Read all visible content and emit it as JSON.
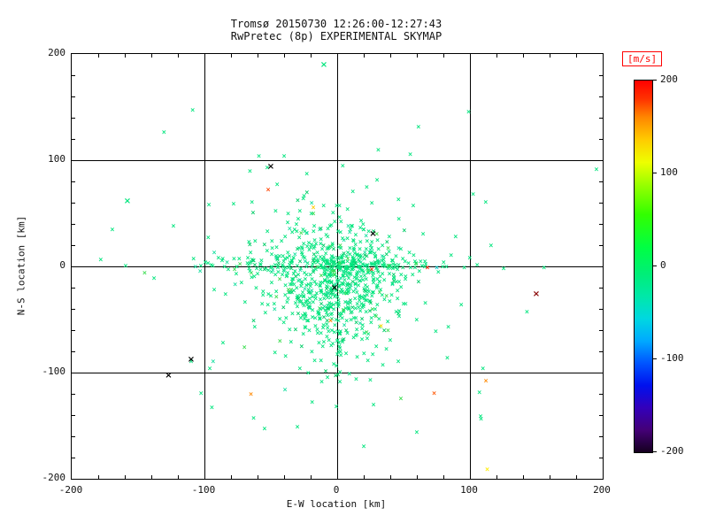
{
  "figure": {
    "title_line1": "Tromsø 20150730 12:26:00-12:27:43",
    "title_line2": "RwPretec (8p) EXPERIMENTAL SKYMAP",
    "text_color": "#111111",
    "background": "#ffffff"
  },
  "axes": {
    "xlabel": "E-W location [km]",
    "ylabel": "N-S location [km]",
    "xlim": [
      -200,
      200
    ],
    "ylim": [
      -200,
      200
    ],
    "xticks": [
      -200,
      -100,
      0,
      100,
      200
    ],
    "yticks": [
      -200,
      -100,
      0,
      100,
      200
    ],
    "minor_step": 20,
    "grid_color": "#000000"
  },
  "colorbar": {
    "label": "[m/s]",
    "label_color": "#ff0000",
    "min": -200,
    "max": 200,
    "ticks": [
      200,
      100,
      0,
      -100,
      -200
    ],
    "gradient": [
      [
        0.0,
        "#ff0000"
      ],
      [
        0.05,
        "#ff3300"
      ],
      [
        0.1,
        "#ff8800"
      ],
      [
        0.16,
        "#ffcc00"
      ],
      [
        0.22,
        "#eeff00"
      ],
      [
        0.28,
        "#99ff00"
      ],
      [
        0.36,
        "#33ff00"
      ],
      [
        0.45,
        "#00ff44"
      ],
      [
        0.52,
        "#00ee77"
      ],
      [
        0.58,
        "#00e8a8"
      ],
      [
        0.64,
        "#00d8e0"
      ],
      [
        0.7,
        "#00aaff"
      ],
      [
        0.76,
        "#0055ff"
      ],
      [
        0.82,
        "#0011ee"
      ],
      [
        0.88,
        "#3300bb"
      ],
      [
        0.94,
        "#440077"
      ],
      [
        1.0,
        "#15001f"
      ]
    ]
  },
  "chart_data": {
    "type": "scatter",
    "title": "Tromsø 20150730 12:26:00-12:27:43 — RwPretec (8p) EXPERIMENTAL SKYMAP",
    "xlabel": "E-W location [km]",
    "ylabel": "N-S location [km]",
    "xlim": [
      -200,
      200
    ],
    "ylim": [
      -200,
      200
    ],
    "value_unit": "m/s",
    "value_range": [
      -200,
      200
    ],
    "marker": "×",
    "seed": 20150730,
    "palette": [
      [
        "#00E57D",
        84
      ],
      [
        "#00CC66",
        8
      ],
      [
        "#17DFA0",
        4
      ],
      [
        "#3ADD4F",
        4
      ]
    ],
    "clusters": [
      {
        "count": 520,
        "cx": -5,
        "cy": -8,
        "sx": 26,
        "sy": 28
      },
      {
        "count": 150,
        "cx": -15,
        "cy": 0,
        "sx": 55,
        "sy": 5
      },
      {
        "count": 150,
        "cx": 2,
        "cy": -48,
        "sx": 15,
        "sy": 28
      },
      {
        "count": 100,
        "cx": 0,
        "cy": -10,
        "sx": 75,
        "sy": 65
      },
      {
        "count": 60,
        "cx": 22,
        "cy": 2,
        "sx": 12,
        "sy": 10
      }
    ],
    "outliers": [
      {
        "x": -50,
        "y": 93,
        "c": "#000000",
        "big": true
      },
      {
        "x": 27,
        "y": 30,
        "c": "#000000",
        "big": true
      },
      {
        "x": -2,
        "y": -21,
        "c": "#000000",
        "big": true
      },
      {
        "x": -127,
        "y": -103,
        "c": "#000000",
        "big": true
      },
      {
        "x": -110,
        "y": -88,
        "c": "#000000",
        "big": true
      },
      {
        "x": 150,
        "y": -27,
        "c": "#880000",
        "big": true
      },
      {
        "x": 68,
        "y": -2,
        "c": "#ff2200",
        "big": false
      },
      {
        "x": 26,
        "y": -3,
        "c": "#ff2200",
        "big": false
      },
      {
        "x": -52,
        "y": 72,
        "c": "#ff4400",
        "big": false
      },
      {
        "x": -18,
        "y": 55,
        "c": "#ffcc00",
        "big": false
      },
      {
        "x": 33,
        "y": -57,
        "c": "#ffdd00",
        "big": false
      },
      {
        "x": -5,
        "y": -52,
        "c": "#ff8800",
        "big": false
      },
      {
        "x": -65,
        "y": -121,
        "c": "#ff8800",
        "big": false
      },
      {
        "x": 112,
        "y": -108,
        "c": "#ff8800",
        "big": false
      },
      {
        "x": 113,
        "y": -192,
        "c": "#ffee00",
        "big": false
      },
      {
        "x": 73,
        "y": -120,
        "c": "#ff5500",
        "big": false
      },
      {
        "x": 75,
        "y": -2,
        "c": "#00cccc",
        "big": false
      },
      {
        "x": -158,
        "y": 61,
        "c": "#00E57D",
        "big": true
      },
      {
        "x": -10,
        "y": 189,
        "c": "#00E57D",
        "big": true
      },
      {
        "x": 55,
        "y": 105,
        "c": "#00E57D",
        "big": false
      },
      {
        "x": -40,
        "y": 103,
        "c": "#00E57D",
        "big": false
      },
      {
        "x": -96,
        "y": -97,
        "c": "#00E57D",
        "big": false
      },
      {
        "x": -63,
        "y": -143,
        "c": "#00E57D",
        "big": false
      },
      {
        "x": 20,
        "y": -170,
        "c": "#00E57D",
        "big": false
      },
      {
        "x": -30,
        "y": -152,
        "c": "#00E57D",
        "big": false
      },
      {
        "x": 108,
        "y": -142,
        "c": "#00E57D",
        "big": false
      }
    ]
  }
}
